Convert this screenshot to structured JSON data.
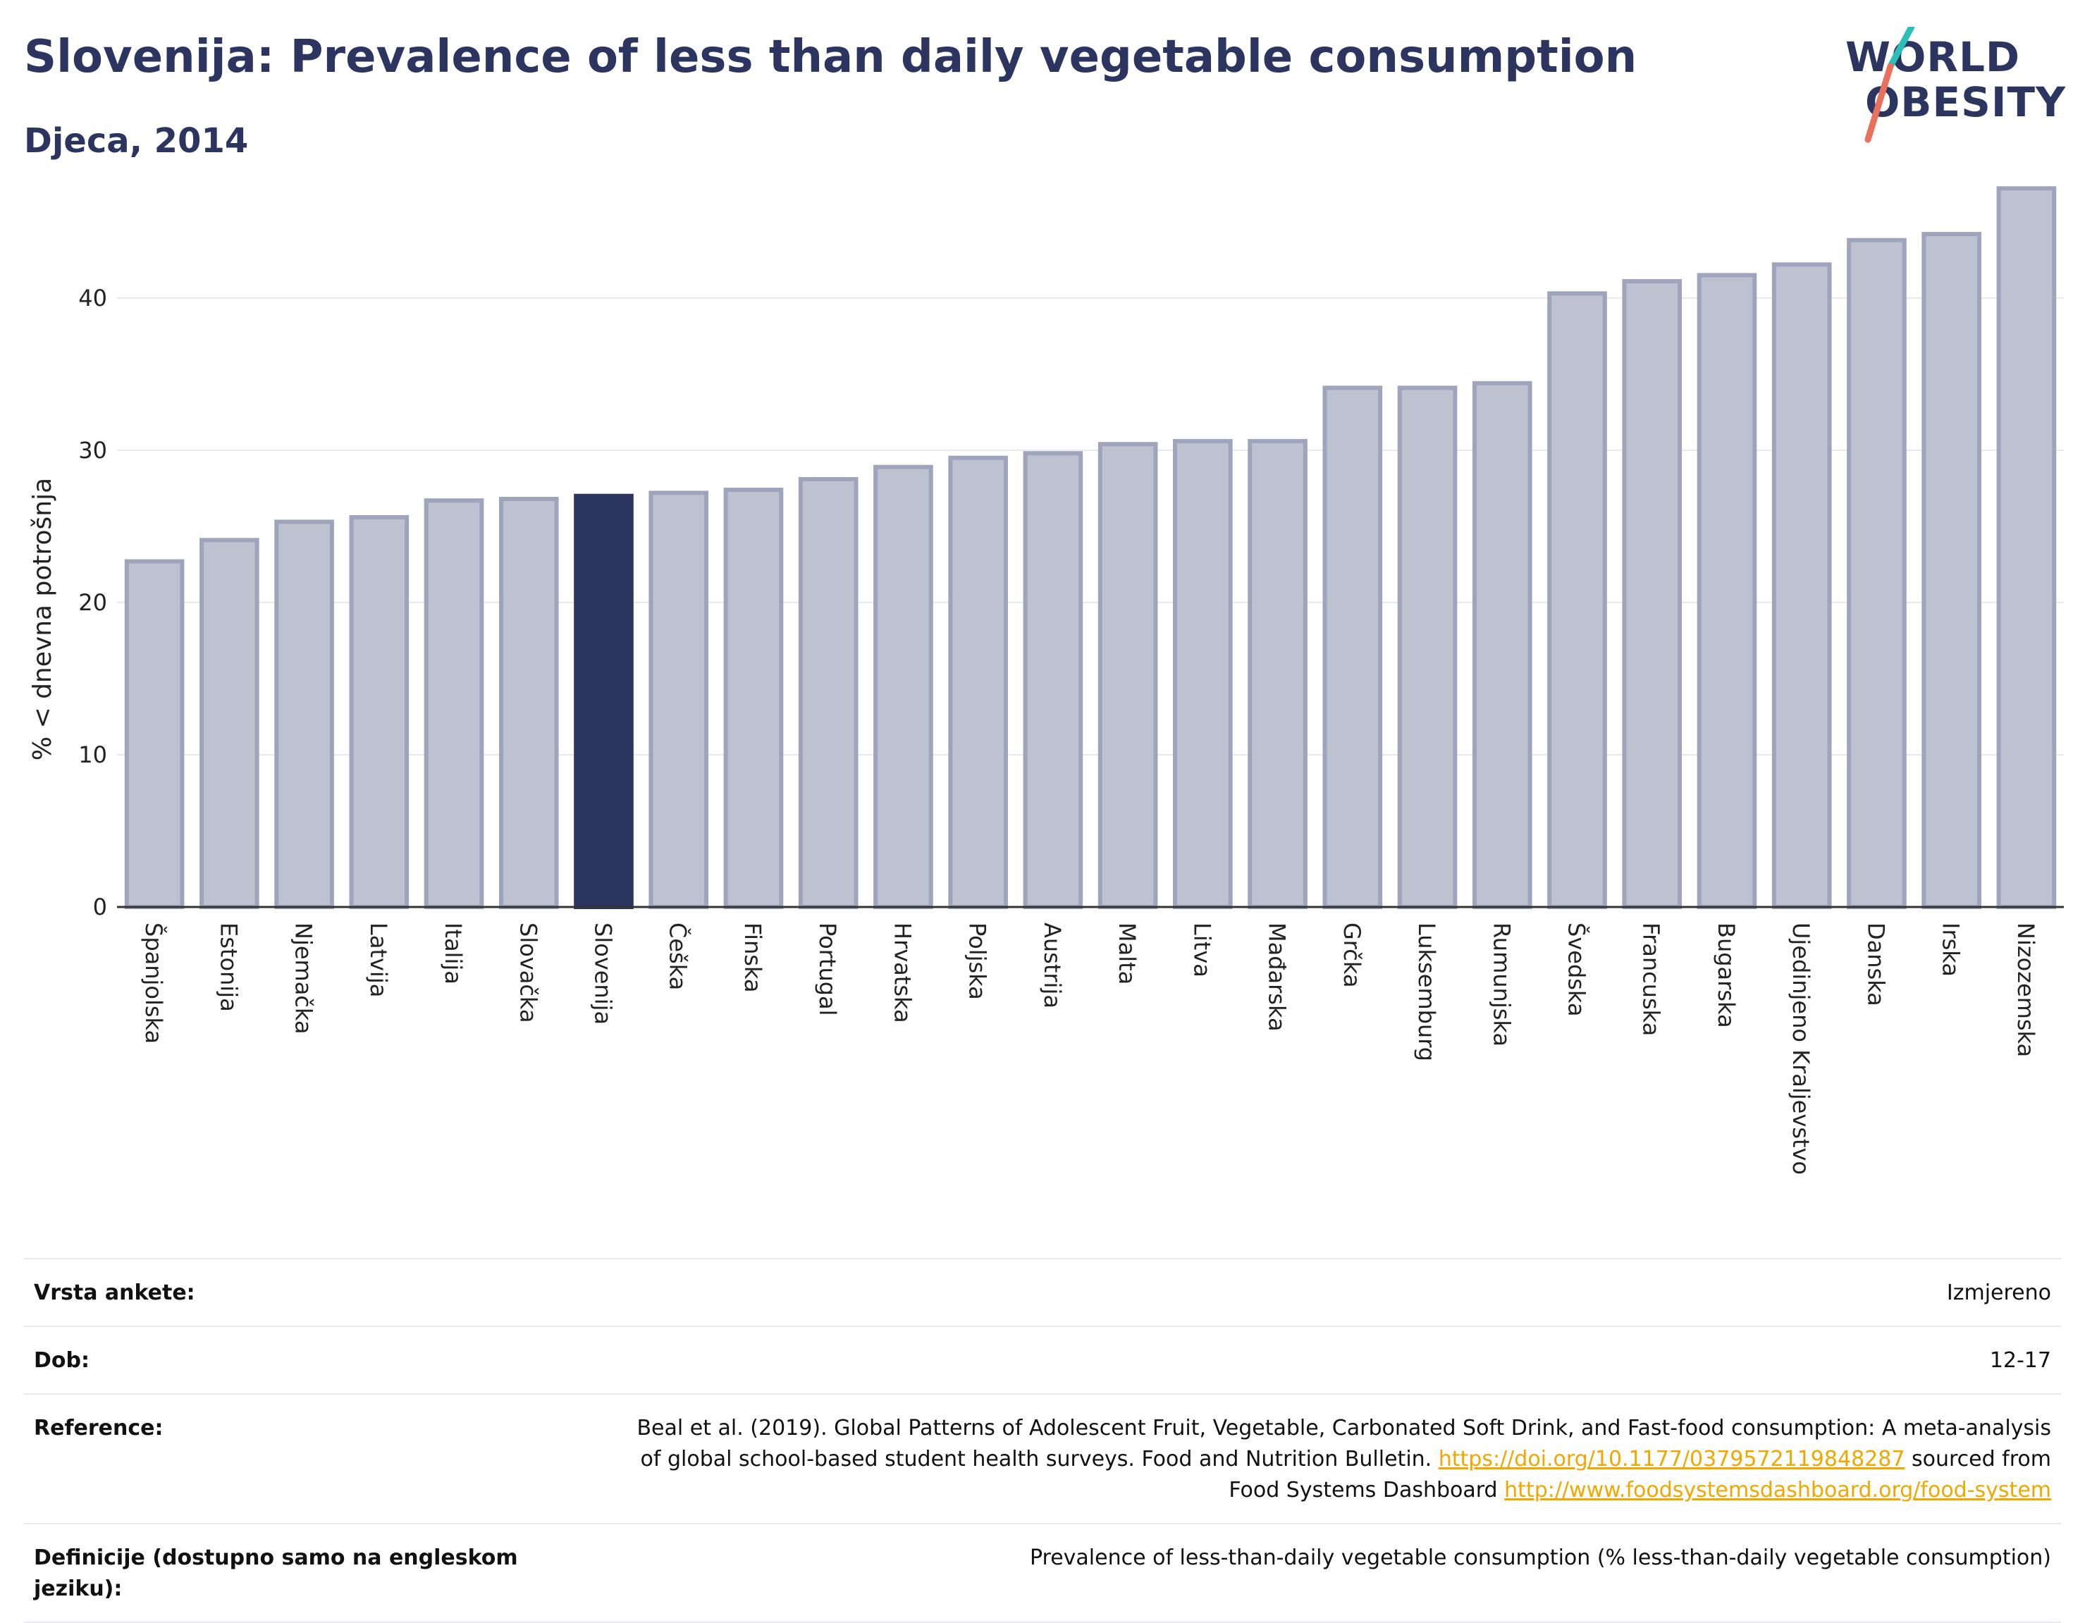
{
  "header": {
    "title": "Slovenija: Prevalence of less than daily vegetable consumption",
    "subtitle": "Djeca, 2014"
  },
  "logo": {
    "line1": "WORLD",
    "line2": "OBESITY",
    "colors": {
      "text": "#2b3560",
      "slash_top": "#2bbfb7",
      "slash_bottom": "#e8705c"
    }
  },
  "colors": {
    "highlight": "#2b3560",
    "bar": "#bec2d0",
    "bar_edge": "#9ea4bb",
    "grid": "#e6e8ef",
    "axis": "#333333",
    "link": "#f0a800"
  },
  "chart_data": {
    "type": "bar",
    "title": "Slovenija: Prevalence of less than daily vegetable consumption",
    "subtitle": "Djeca, 2014",
    "ylabel": "% < dnevna potrošnja",
    "xlabel": "",
    "ylim": [
      0,
      48
    ],
    "yticks": [
      0,
      10,
      20,
      30,
      40
    ],
    "grid": true,
    "highlight": "Slovenija",
    "categories": [
      "Španjolska",
      "Estonija",
      "Njemačka",
      "Latvija",
      "Italija",
      "Slovačka",
      "Slovenija",
      "Češka",
      "Finska",
      "Portugal",
      "Hrvatska",
      "Poljska",
      "Austrija",
      "Malta",
      "Litva",
      "Mađarska",
      "Grčka",
      "Luksemburg",
      "Rumunjska",
      "Švedska",
      "Francuska",
      "Bugarska",
      "Ujedinjeno Kraljevstvo",
      "Danska",
      "Irska",
      "Nizozemska"
    ],
    "values": [
      22.7,
      24.1,
      25.3,
      25.6,
      26.7,
      26.8,
      27.0,
      27.2,
      27.4,
      28.1,
      28.9,
      29.5,
      29.8,
      30.4,
      30.6,
      30.6,
      34.1,
      34.1,
      34.4,
      40.3,
      41.1,
      41.5,
      42.2,
      43.8,
      44.2,
      47.2
    ]
  },
  "info": {
    "rows": [
      {
        "label": "Vrsta ankete:",
        "value": "Izmjereno"
      },
      {
        "label": "Dob:",
        "value": "12-17"
      },
      {
        "label": "Reference:",
        "line1": "Beal et al. (2019). Global Patterns of Adolescent Fruit, Vegetable, Carbonated Soft Drink, and Fast-food consumption: A meta-analysis",
        "line2_pre": "of global school-based student health surveys. Food and Nutrition Bulletin.",
        "line2_link": "https://doi.org/10.1177/0379572119848287",
        "line2_post": "sourced from",
        "line3_pre": "Food Systems Dashboard",
        "line3_link": "http://www.foodsystemsdashboard.org/food-system"
      },
      {
        "label": "Definicije (dostupno samo na engleskom jeziku):",
        "value": "Prevalence of less-than-daily vegetable consumption (% less-than-daily vegetable consumption)"
      }
    ]
  }
}
